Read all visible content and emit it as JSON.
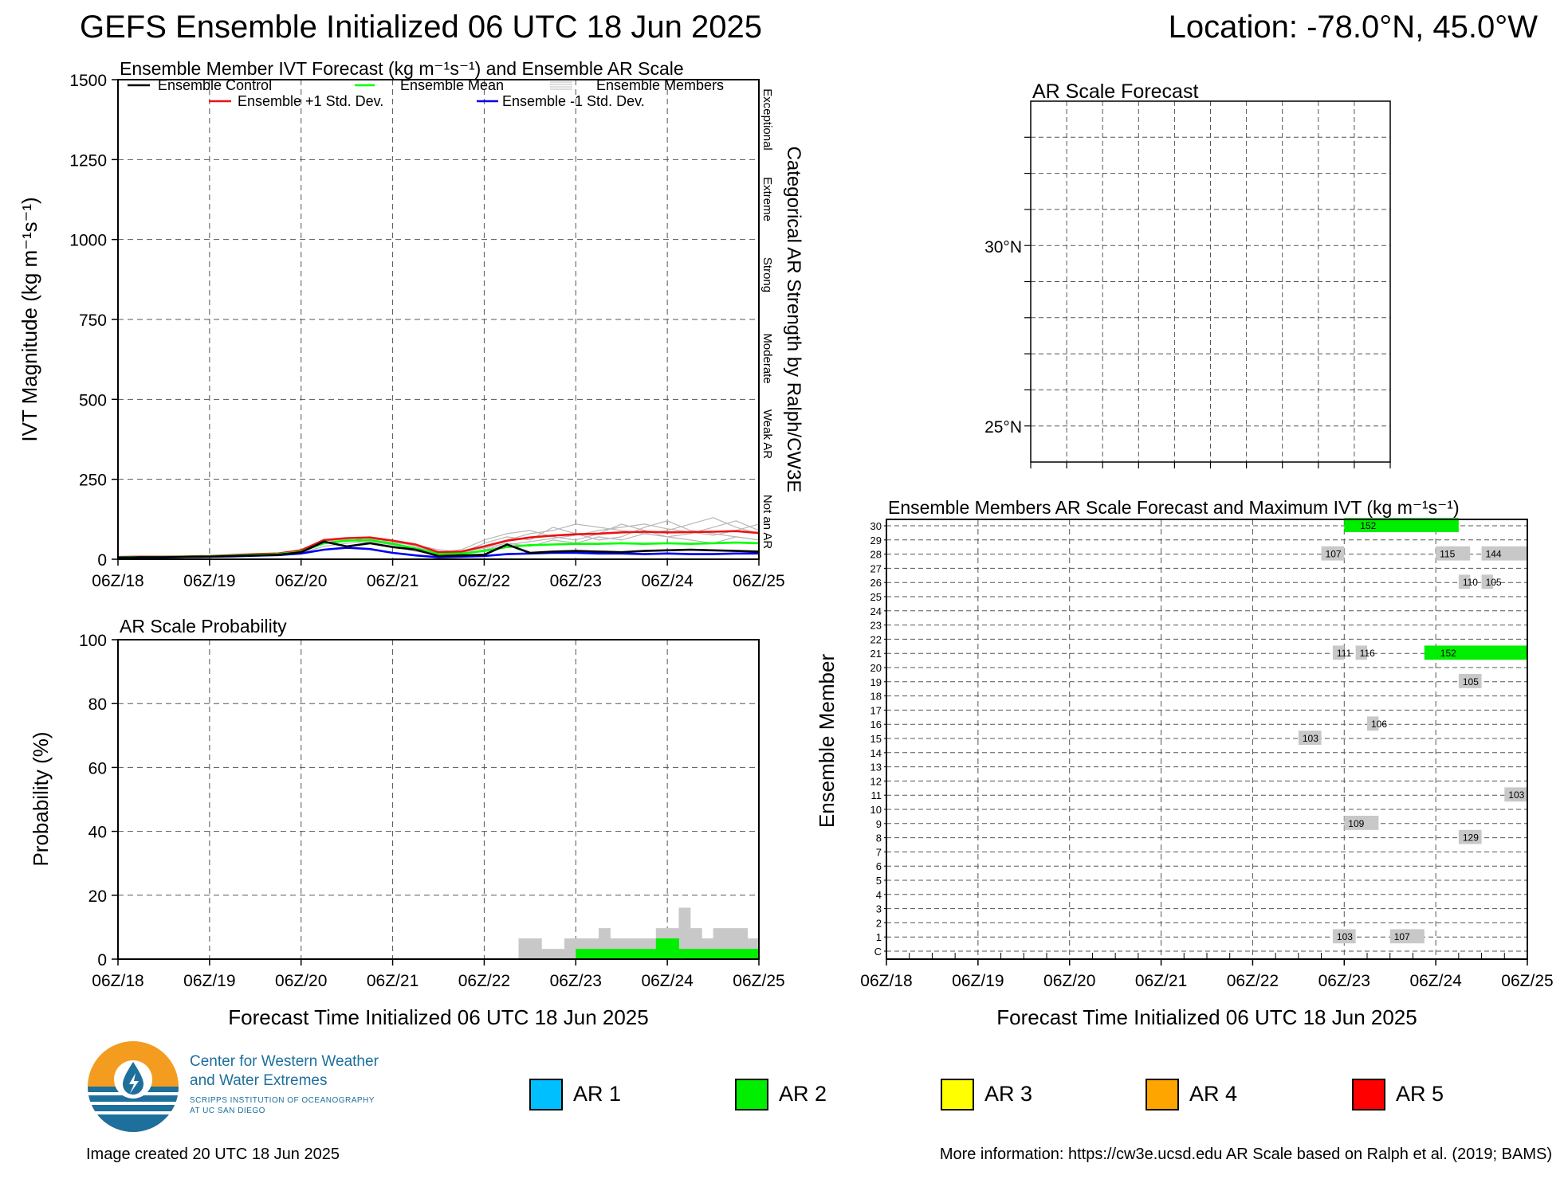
{
  "header": {
    "title": "GEFS Ensemble Initialized 06 UTC 18 Jun 2025",
    "location": "Location: -78.0°N, 45.0°W"
  },
  "colors": {
    "ar1": "#00bfff",
    "ar2": "#00ee00",
    "ar3": "#ffff00",
    "ar4": "#ffa500",
    "ar5": "#ff0000",
    "control": "#000000",
    "mean": "#00ff00",
    "plus_std": "#ee1111",
    "minus_std": "#0000ee",
    "members": "#b8b8b8",
    "member_bar": "#c8c8c8"
  },
  "chart_data": [
    {
      "id": "ivt",
      "type": "line",
      "title": "Ensemble Member IVT Forecast (kg m⁻¹s⁻¹) and Ensemble AR Scale",
      "ylabel": "IVT Magnitude (kg m⁻¹s⁻¹)",
      "right_label": "Categorical AR Strength by Ralph/CW3E",
      "categories_right": [
        "Not an AR",
        "Weak AR",
        "Moderate",
        "Strong",
        "Extreme",
        "Exceptional"
      ],
      "xlim": [
        0,
        168
      ],
      "ylim": [
        0,
        1500
      ],
      "yticks": [
        0,
        250,
        500,
        750,
        1000,
        1250,
        1500
      ],
      "xticks": [
        "06Z/18",
        "06Z/19",
        "06Z/20",
        "06Z/21",
        "06Z/22",
        "06Z/23",
        "06Z/24",
        "06Z/25"
      ],
      "grid": true,
      "legend": [
        "Ensemble Control",
        "Ensemble Mean",
        "Ensemble Members",
        "Ensemble +1 Std. Dev.",
        "Ensemble -1 Std. Dev."
      ],
      "x": [
        0,
        6,
        12,
        18,
        24,
        30,
        36,
        42,
        48,
        54,
        60,
        66,
        72,
        78,
        84,
        90,
        96,
        102,
        108,
        114,
        120,
        126,
        132,
        138,
        144,
        150,
        156,
        162,
        168
      ],
      "series": [
        {
          "name": "Ensemble +1 Std. Dev.",
          "values": [
            7,
            8,
            8,
            9,
            10,
            13,
            16,
            18,
            28,
            60,
            66,
            68,
            58,
            46,
            22,
            24,
            40,
            58,
            68,
            74,
            78,
            80,
            84,
            86,
            84,
            85,
            86,
            88,
            82
          ]
        },
        {
          "name": "Ensemble Mean",
          "values": [
            6,
            7,
            7,
            8,
            9,
            11,
            14,
            16,
            24,
            50,
            58,
            60,
            48,
            34,
            16,
            18,
            26,
            38,
            44,
            46,
            48,
            48,
            50,
            48,
            50,
            48,
            50,
            52,
            50
          ]
        },
        {
          "name": "Ensemble -1 Std. Dev.",
          "values": [
            5,
            6,
            6,
            7,
            8,
            9,
            11,
            13,
            18,
            30,
            36,
            32,
            20,
            12,
            6,
            8,
            10,
            16,
            18,
            20,
            20,
            18,
            18,
            16,
            18,
            16,
            16,
            18,
            18
          ]
        },
        {
          "name": "Ensemble Control",
          "values": [
            5,
            6,
            6,
            7,
            8,
            10,
            12,
            14,
            22,
            55,
            40,
            50,
            38,
            30,
            10,
            12,
            14,
            46,
            20,
            24,
            26,
            24,
            22,
            26,
            28,
            30,
            28,
            26,
            24
          ]
        }
      ],
      "members_note": "gray member traces",
      "members": [
        [
          6,
          7,
          7,
          8,
          9,
          12,
          15,
          17,
          30,
          60,
          55,
          70,
          50,
          30,
          20,
          30,
          60,
          80,
          90,
          70,
          60,
          80,
          110,
          90,
          70,
          80,
          100,
          120,
          90
        ],
        [
          5,
          6,
          6,
          7,
          8,
          10,
          13,
          15,
          26,
          48,
          62,
          50,
          40,
          25,
          15,
          20,
          50,
          70,
          60,
          100,
          80,
          60,
          70,
          100,
          120,
          90,
          80,
          70,
          60
        ],
        [
          6,
          6,
          7,
          8,
          9,
          11,
          14,
          16,
          24,
          52,
          58,
          62,
          58,
          40,
          18,
          25,
          40,
          60,
          80,
          90,
          110,
          100,
          90,
          80,
          90,
          110,
          130,
          100,
          80
        ],
        [
          5,
          6,
          7,
          7,
          8,
          10,
          12,
          14,
          20,
          40,
          50,
          55,
          45,
          35,
          25,
          15,
          30,
          45,
          55,
          65,
          75,
          90,
          100,
          110,
          95,
          85,
          75,
          90,
          110
        ],
        [
          6,
          7,
          7,
          8,
          9,
          12,
          14,
          16,
          28,
          62,
          60,
          58,
          52,
          44,
          30,
          22,
          35,
          50,
          40,
          60,
          50,
          70,
          60,
          80,
          70,
          60,
          50,
          70,
          60
        ]
      ]
    },
    {
      "id": "prob",
      "type": "bar",
      "title": "AR Scale Probability",
      "ylabel": "Probability (%)",
      "xlabel": "Forecast Time Initialized 06 UTC 18 Jun 2025",
      "xlim": [
        0,
        168
      ],
      "ylim": [
        0,
        100
      ],
      "yticks": [
        0,
        20,
        40,
        60,
        80,
        100
      ],
      "xticks": [
        "06Z/18",
        "06Z/19",
        "06Z/20",
        "06Z/21",
        "06Z/22",
        "06Z/23",
        "06Z/24",
        "06Z/25"
      ],
      "grid": true,
      "bin_hours": 3,
      "bin_start_hour": 105,
      "any_ar": [
        6.5,
        6.5,
        3.2,
        3.2,
        6.5,
        6.5,
        6.5,
        9.7,
        6.5,
        6.5,
        6.5,
        6.5,
        9.7,
        9.7,
        16.1,
        9.7,
        6.5,
        9.7,
        9.7,
        9.7,
        6.5
      ],
      "ar2": [
        0,
        0,
        0,
        0,
        0,
        3.2,
        3.2,
        3.2,
        3.2,
        3.2,
        3.2,
        3.2,
        6.5,
        6.5,
        3.2,
        3.2,
        3.2,
        3.2,
        3.2,
        3.2,
        3.2
      ]
    },
    {
      "id": "arscale-map",
      "type": "map",
      "title": "AR Scale Forecast",
      "lat_labels": [
        "30°N",
        "25°N"
      ]
    },
    {
      "id": "members",
      "type": "heatmap",
      "title": "Ensemble Members AR Scale Forecast and Maximum IVT (kg m⁻¹s⁻¹)",
      "ylabel": "Ensemble Member",
      "xlabel": "Forecast Time Initialized 06 UTC 18 Jun 2025",
      "xlim": [
        0,
        168
      ],
      "xticks": [
        "06Z/18",
        "06Z/19",
        "06Z/20",
        "06Z/21",
        "06Z/22",
        "06Z/23",
        "06Z/24",
        "06Z/25"
      ],
      "members": [
        "C",
        "1",
        "2",
        "3",
        "4",
        "5",
        "6",
        "7",
        "8",
        "9",
        "10",
        "11",
        "12",
        "13",
        "14",
        "15",
        "16",
        "17",
        "18",
        "19",
        "20",
        "21",
        "22",
        "23",
        "24",
        "25",
        "26",
        "27",
        "28",
        "29",
        "30"
      ],
      "events": [
        {
          "member": "30",
          "start": 120,
          "end": 150,
          "ar": 2,
          "max_ivt": "152"
        },
        {
          "member": "28",
          "start": 114,
          "end": 120,
          "ar": 1,
          "max_ivt": "107"
        },
        {
          "member": "28",
          "start": 144,
          "end": 153,
          "ar": 1,
          "max_ivt": "115"
        },
        {
          "member": "28",
          "start": 156,
          "end": 168,
          "ar": 1,
          "max_ivt": "144"
        },
        {
          "member": "26",
          "start": 150,
          "end": 153,
          "ar": 1,
          "max_ivt": "110"
        },
        {
          "member": "26",
          "start": 156,
          "end": 159,
          "ar": 1,
          "max_ivt": "105"
        },
        {
          "member": "21",
          "start": 117,
          "end": 120,
          "ar": 1,
          "max_ivt": "111"
        },
        {
          "member": "21",
          "start": 123,
          "end": 126,
          "ar": 1,
          "max_ivt": "116"
        },
        {
          "member": "21",
          "start": 141,
          "end": 168,
          "ar": 2,
          "max_ivt": "152"
        },
        {
          "member": "19",
          "start": 150,
          "end": 156,
          "ar": 1,
          "max_ivt": "105"
        },
        {
          "member": "16",
          "start": 126,
          "end": 129,
          "ar": 1,
          "max_ivt": "106"
        },
        {
          "member": "15",
          "start": 108,
          "end": 114,
          "ar": 1,
          "max_ivt": "103"
        },
        {
          "member": "11",
          "start": 162,
          "end": 168,
          "ar": 1,
          "max_ivt": "103"
        },
        {
          "member": "9",
          "start": 120,
          "end": 129,
          "ar": 1,
          "max_ivt": "109"
        },
        {
          "member": "8",
          "start": 150,
          "end": 156,
          "ar": 1,
          "max_ivt": "129"
        },
        {
          "member": "1",
          "start": 117,
          "end": 123,
          "ar": 1,
          "max_ivt": "103"
        },
        {
          "member": "1",
          "start": 132,
          "end": 141,
          "ar": 1,
          "max_ivt": "107"
        }
      ]
    }
  ],
  "ar_legend": [
    {
      "label": "AR 1",
      "color": "#00bfff"
    },
    {
      "label": "AR 2",
      "color": "#00ee00"
    },
    {
      "label": "AR 3",
      "color": "#ffff00"
    },
    {
      "label": "AR 4",
      "color": "#ffa500"
    },
    {
      "label": "AR 5",
      "color": "#ff0000"
    }
  ],
  "footer": {
    "org_line1": "Center for Western Weather",
    "org_line2": "and Water Extremes",
    "org_sub1": "SCRIPPS INSTITUTION OF OCEANOGRAPHY",
    "org_sub2": "AT UC SAN DIEGO",
    "created": "Image created 20 UTC 18 Jun 2025",
    "more_info": "More information: https://cw3e.ucsd.edu AR Scale based on Ralph et al. (2019; BAMS)"
  }
}
